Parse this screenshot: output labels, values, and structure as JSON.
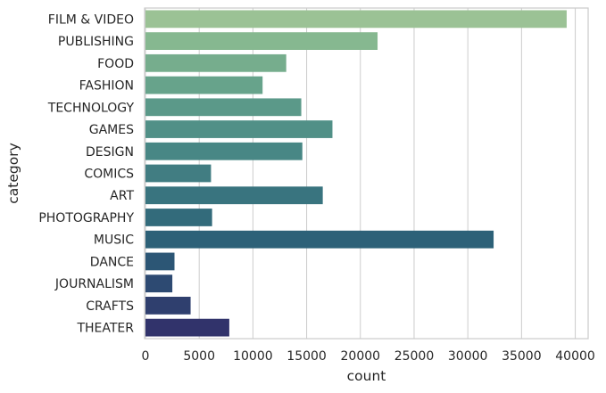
{
  "chart_data": {
    "type": "bar",
    "orientation": "horizontal",
    "categories": [
      "FILM & VIDEO",
      "PUBLISHING",
      "FOOD",
      "FASHION",
      "TECHNOLOGY",
      "GAMES",
      "DESIGN",
      "COMICS",
      "ART",
      "PHOTOGRAPHY",
      "MUSIC",
      "DANCE",
      "JOURNALISM",
      "CRAFTS",
      "THEATER"
    ],
    "values": [
      39200,
      21600,
      13100,
      10900,
      14500,
      17400,
      14600,
      6100,
      16500,
      6200,
      32400,
      2700,
      2500,
      4200,
      7800
    ],
    "colors": [
      "#9bc295",
      "#86b890",
      "#76ad8d",
      "#67a38b",
      "#5b9989",
      "#519087",
      "#488785",
      "#417d82",
      "#39747f",
      "#336b7b",
      "#2d6178",
      "#2c5675",
      "#2d4a72",
      "#2f3f6e",
      "#31336b"
    ],
    "xlabel": "count",
    "ylabel": "category",
    "xlim": [
      0,
      41200
    ],
    "xticks": [
      0,
      5000,
      10000,
      15000,
      20000,
      25000,
      30000,
      35000,
      40000
    ],
    "xtick_labels": [
      "0",
      "5000",
      "10000",
      "15000",
      "20000",
      "25000",
      "30000",
      "35000",
      "40000"
    ],
    "grid": "vertical",
    "legend": "none"
  }
}
